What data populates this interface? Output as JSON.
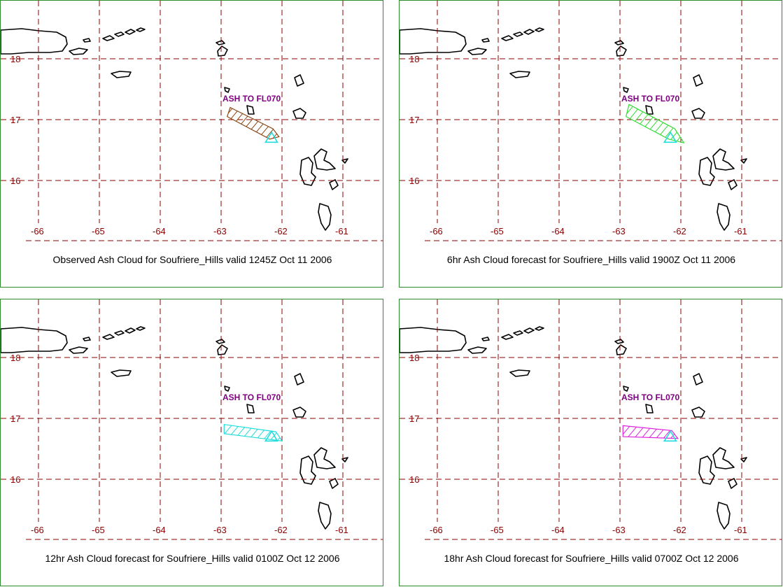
{
  "panels": [
    {
      "caption": "Observed Ash Cloud for Soufriere_Hills valid 1245Z Oct 11 2006",
      "ash_label": "ASH TO FL070",
      "ash_color": "#8b4513",
      "ash_polygon": [
        [
          -62.85,
          17.2
        ],
        [
          -62.15,
          16.85
        ],
        [
          -62.05,
          16.72
        ],
        [
          -62.2,
          16.68
        ],
        [
          -62.9,
          17.05
        ]
      ]
    },
    {
      "caption": "6hr Ash Cloud forecast for Soufriere_Hills valid 1900Z Oct 11 2006",
      "ash_label": "ASH TO FL070",
      "ash_color": "#33dd33",
      "ash_polygon": [
        [
          -62.85,
          17.25
        ],
        [
          -62.1,
          16.85
        ],
        [
          -61.95,
          16.62
        ],
        [
          -62.2,
          16.68
        ],
        [
          -62.9,
          17.05
        ]
      ]
    },
    {
      "caption": "12hr Ash Cloud forecast for Soufriere_Hills valid 0100Z Oct 12 2006",
      "ash_label": "ASH TO FL070",
      "ash_color": "#22dddd",
      "ash_polygon": [
        [
          -62.95,
          16.9
        ],
        [
          -62.1,
          16.78
        ],
        [
          -62.0,
          16.63
        ],
        [
          -62.95,
          16.75
        ]
      ]
    },
    {
      "caption": "18hr Ash Cloud forecast for Soufriere_Hills valid 0700Z Oct 12 2006",
      "ash_label": "ASH TO FL070",
      "ash_color": "#dd22dd",
      "ash_polygon": [
        [
          -62.95,
          16.88
        ],
        [
          -62.15,
          16.8
        ],
        [
          -62.05,
          16.67
        ],
        [
          -62.95,
          16.7
        ]
      ]
    }
  ],
  "axes": {
    "lon_ticks": [
      -66,
      -65,
      -64,
      -63,
      -62,
      -61
    ],
    "lat_ticks": [
      18,
      17,
      16
    ],
    "lon_labels": [
      "-66",
      "-65",
      "-64",
      "-63",
      "-62",
      "-61"
    ],
    "lat_labels": [
      "18",
      "17",
      "16"
    ]
  },
  "volcano_marker_color": "#22dddd",
  "colors": {
    "grid": "#8b0000",
    "border": "#2e8b2e",
    "ash_label": "#800080"
  }
}
